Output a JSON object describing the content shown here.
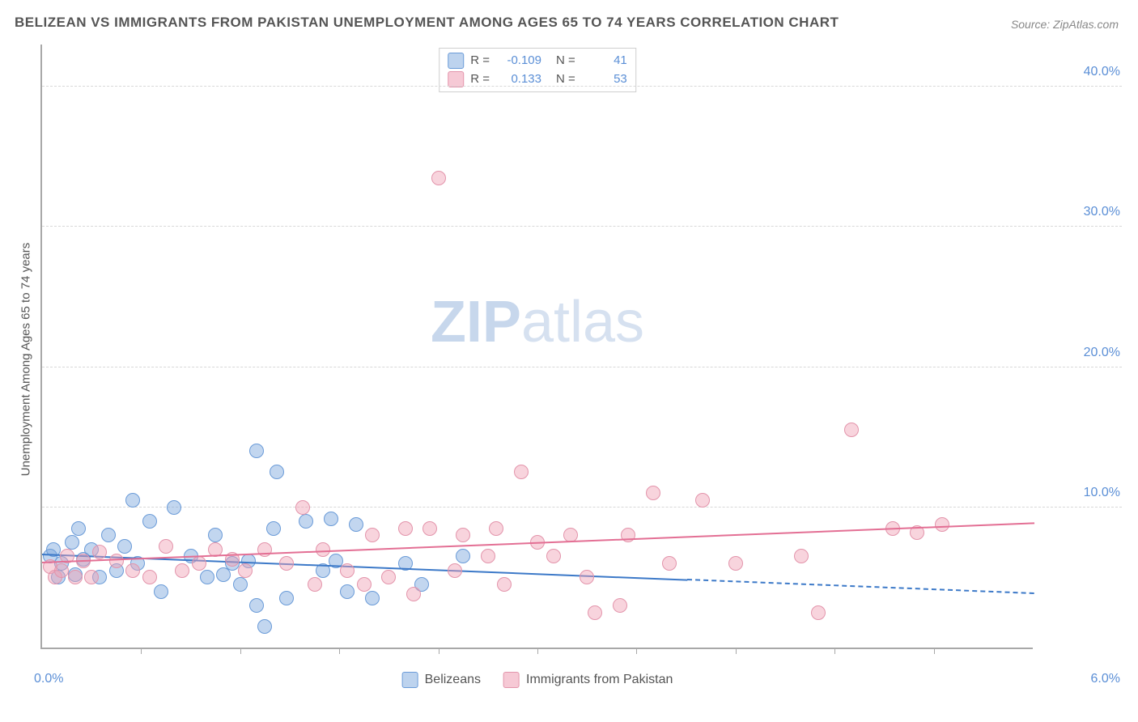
{
  "title": "BELIZEAN VS IMMIGRANTS FROM PAKISTAN UNEMPLOYMENT AMONG AGES 65 TO 74 YEARS CORRELATION CHART",
  "source": "Source: ZipAtlas.com",
  "watermark": {
    "bold": "ZIP",
    "rest": "atlas"
  },
  "y_axis": {
    "label": "Unemployment Among Ages 65 to 74 years",
    "min": 0,
    "max": 43,
    "ticks": [
      10.0,
      20.0,
      30.0,
      40.0
    ],
    "tick_labels": [
      "10.0%",
      "20.0%",
      "30.0%",
      "40.0%"
    ],
    "label_color": "#5b8fd6",
    "grid_color": "#d8d8d8"
  },
  "x_axis": {
    "min": 0,
    "max": 6.0,
    "ticks": [
      0.6,
      1.2,
      1.8,
      2.4,
      3.0,
      3.6,
      4.2,
      4.8,
      5.4
    ],
    "left_label": "0.0%",
    "right_label": "6.0%",
    "label_color": "#5b8fd6"
  },
  "series": [
    {
      "name": "Belizeans",
      "color_fill": "rgba(120,165,220,0.45)",
      "color_stroke": "#6a9bd8",
      "swatch_fill": "#bdd3ee",
      "swatch_stroke": "#6a9bd8",
      "marker_radius": 9,
      "R_label": "R =",
      "R_value": "-0.109",
      "N_label": "N =",
      "N_value": "41",
      "trend": {
        "x1": 0.0,
        "y1": 6.8,
        "x2": 6.0,
        "y2": 4.0,
        "solid_until_x": 3.9,
        "color": "#3c79c8"
      },
      "points": [
        [
          0.05,
          6.5
        ],
        [
          0.07,
          7.0
        ],
        [
          0.1,
          5.0
        ],
        [
          0.12,
          6.0
        ],
        [
          0.18,
          7.5
        ],
        [
          0.2,
          5.2
        ],
        [
          0.22,
          8.5
        ],
        [
          0.25,
          6.3
        ],
        [
          0.3,
          7.0
        ],
        [
          0.35,
          5.0
        ],
        [
          0.4,
          8.0
        ],
        [
          0.45,
          5.5
        ],
        [
          0.5,
          7.2
        ],
        [
          0.55,
          10.5
        ],
        [
          0.58,
          6.0
        ],
        [
          0.65,
          9.0
        ],
        [
          0.72,
          4.0
        ],
        [
          0.8,
          10.0
        ],
        [
          0.9,
          6.5
        ],
        [
          1.0,
          5.0
        ],
        [
          1.05,
          8.0
        ],
        [
          1.1,
          5.2
        ],
        [
          1.15,
          6.0
        ],
        [
          1.2,
          4.5
        ],
        [
          1.25,
          6.2
        ],
        [
          1.3,
          14.0
        ],
        [
          1.3,
          3.0
        ],
        [
          1.35,
          1.5
        ],
        [
          1.4,
          8.5
        ],
        [
          1.42,
          12.5
        ],
        [
          1.48,
          3.5
        ],
        [
          1.6,
          9.0
        ],
        [
          1.7,
          5.5
        ],
        [
          1.75,
          9.2
        ],
        [
          1.78,
          6.2
        ],
        [
          1.85,
          4.0
        ],
        [
          1.9,
          8.8
        ],
        [
          2.0,
          3.5
        ],
        [
          2.2,
          6.0
        ],
        [
          2.3,
          4.5
        ],
        [
          2.55,
          6.5
        ]
      ]
    },
    {
      "name": "Immigrants from Pakistan",
      "color_fill": "rgba(240,160,180,0.45)",
      "color_stroke": "#e394ab",
      "swatch_fill": "#f6c9d5",
      "swatch_stroke": "#e394ab",
      "marker_radius": 9,
      "R_label": "R =",
      "R_value": "0.133",
      "N_label": "N =",
      "N_value": "53",
      "trend": {
        "x1": 0.0,
        "y1": 6.2,
        "x2": 6.0,
        "y2": 9.0,
        "solid_until_x": 6.0,
        "color": "#e36f94"
      },
      "points": [
        [
          0.05,
          5.8
        ],
        [
          0.08,
          5.0
        ],
        [
          0.12,
          5.5
        ],
        [
          0.15,
          6.5
        ],
        [
          0.2,
          5.0
        ],
        [
          0.25,
          6.2
        ],
        [
          0.3,
          5.0
        ],
        [
          0.35,
          6.8
        ],
        [
          0.45,
          6.2
        ],
        [
          0.55,
          5.5
        ],
        [
          0.65,
          5.0
        ],
        [
          0.75,
          7.2
        ],
        [
          0.85,
          5.5
        ],
        [
          0.95,
          6.0
        ],
        [
          1.05,
          7.0
        ],
        [
          1.15,
          6.3
        ],
        [
          1.23,
          5.5
        ],
        [
          1.35,
          7.0
        ],
        [
          1.48,
          6.0
        ],
        [
          1.58,
          10.0
        ],
        [
          1.65,
          4.5
        ],
        [
          1.7,
          7.0
        ],
        [
          1.85,
          5.5
        ],
        [
          1.95,
          4.5
        ],
        [
          2.0,
          8.0
        ],
        [
          2.1,
          5.0
        ],
        [
          2.2,
          8.5
        ],
        [
          2.25,
          3.8
        ],
        [
          2.35,
          8.5
        ],
        [
          2.4,
          33.5
        ],
        [
          2.5,
          5.5
        ],
        [
          2.55,
          8.0
        ],
        [
          2.7,
          6.5
        ],
        [
          2.75,
          8.5
        ],
        [
          2.8,
          4.5
        ],
        [
          2.9,
          12.5
        ],
        [
          3.0,
          7.5
        ],
        [
          3.1,
          6.5
        ],
        [
          3.2,
          8.0
        ],
        [
          3.3,
          5.0
        ],
        [
          3.35,
          2.5
        ],
        [
          3.5,
          3.0
        ],
        [
          3.55,
          8.0
        ],
        [
          3.7,
          11.0
        ],
        [
          3.8,
          6.0
        ],
        [
          4.0,
          10.5
        ],
        [
          4.2,
          6.0
        ],
        [
          4.6,
          6.5
        ],
        [
          4.7,
          2.5
        ],
        [
          4.9,
          15.5
        ],
        [
          5.15,
          8.5
        ],
        [
          5.3,
          8.2
        ],
        [
          5.45,
          8.8
        ]
      ]
    }
  ],
  "legend_bottom": [
    {
      "label": "Belizeans",
      "series_index": 0
    },
    {
      "label": "Immigrants from Pakistan",
      "series_index": 1
    }
  ]
}
